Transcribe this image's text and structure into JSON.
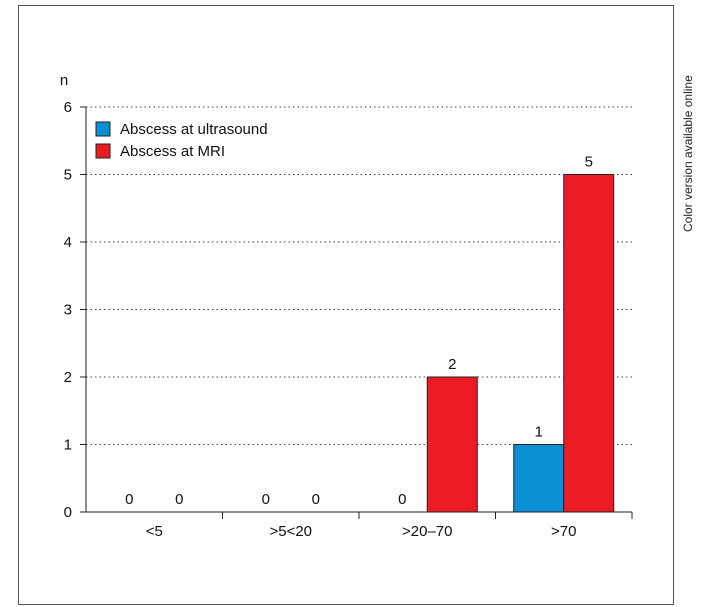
{
  "side_note": "Color version available online",
  "chart_data": {
    "type": "bar",
    "title": "",
    "xlabel": "",
    "ylabel": "n",
    "ylim": [
      0,
      6
    ],
    "yticks": [
      0,
      1,
      2,
      3,
      4,
      5,
      6
    ],
    "grid": "horizontal dotted",
    "legend_position": "top-left",
    "categories": [
      "<5",
      ">5<20",
      ">20–70",
      ">70"
    ],
    "series": [
      {
        "name": "Abscess at ultrasound",
        "color": "#0a8fd5",
        "values": [
          0,
          0,
          0,
          1
        ]
      },
      {
        "name": "Abscess at MRI",
        "color": "#ed1c24",
        "values": [
          0,
          0,
          2,
          5
        ]
      }
    ]
  }
}
